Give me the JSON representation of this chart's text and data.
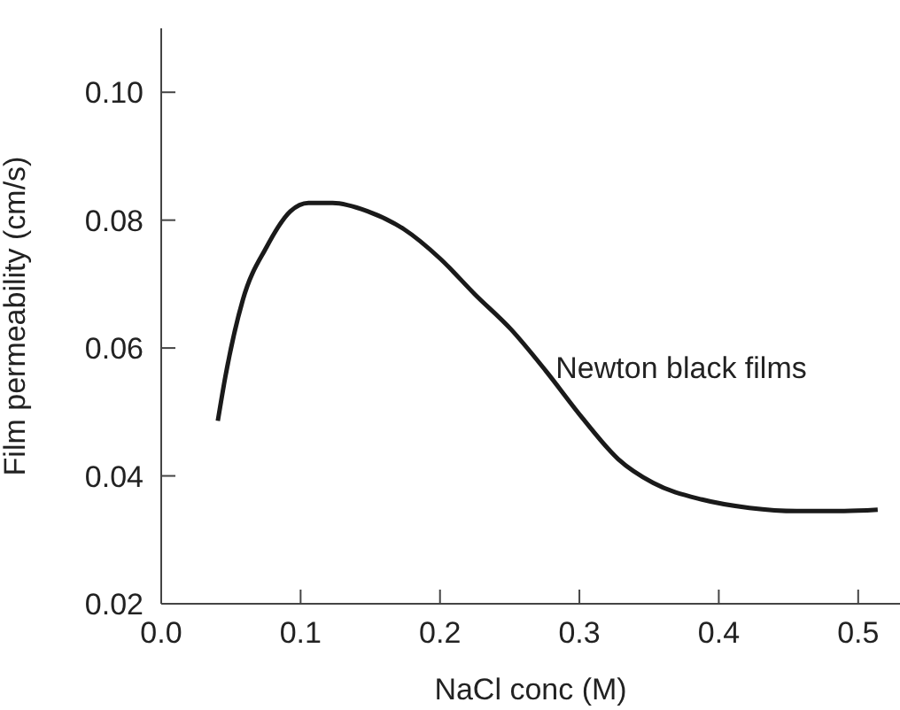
{
  "chart_data": {
    "type": "line",
    "xlabel": "NaCl conc (M)",
    "ylabel": "Film permeability (cm/s)",
    "xlim": [
      0,
      0.53
    ],
    "xticks": [
      {
        "value": 0,
        "label": "0.0"
      },
      0.1,
      0.2,
      0.3,
      0.4,
      0.5
    ],
    "ylim": [
      0.02,
      0.11
    ],
    "yticks": [
      0.02,
      0.04,
      0.06,
      0.08,
      {
        "value": 0.1,
        "label": "0.10"
      }
    ],
    "grid": false,
    "legend": false,
    "marker": "none",
    "line_style": "solid",
    "annotations": [
      {
        "text": "Newton black films",
        "x": 0.283,
        "y": 0.057
      }
    ],
    "series": [
      {
        "color": "#1a1a1a",
        "x": [
          0.0406,
          0.046,
          0.0585,
          0.0756,
          0.0927,
          0.1056,
          0.123,
          0.148,
          0.174,
          0.2,
          0.225,
          0.251,
          0.276,
          0.302,
          0.328,
          0.353,
          0.388,
          0.422,
          0.456,
          0.49,
          0.514
        ],
        "values": [
          0.0486,
          0.0555,
          0.0675,
          0.0758,
          0.0814,
          0.0827,
          0.0827,
          0.0814,
          0.0786,
          0.074,
          0.0684,
          0.0629,
          0.0564,
          0.0491,
          0.0426,
          0.0389,
          0.0363,
          0.035,
          0.0345,
          0.0345,
          0.0347
        ]
      }
    ]
  }
}
